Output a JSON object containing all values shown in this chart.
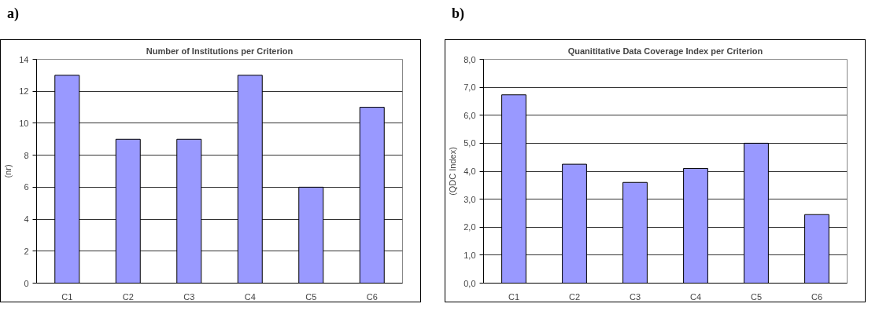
{
  "chart_data": [
    {
      "type": "bar",
      "title": "Number of Institutions per Criterion",
      "ylabel": "(nr)",
      "annotations": [
        "a)"
      ],
      "categories": [
        "C1",
        "C2",
        "C3",
        "C4",
        "C5",
        "C6"
      ],
      "values": [
        13,
        9,
        9,
        13,
        6,
        11
      ],
      "color": "#9999ff",
      "ylim": [
        0,
        14
      ],
      "yticks": [
        0,
        2,
        4,
        6,
        8,
        10,
        12,
        14
      ],
      "grid": "y"
    },
    {
      "type": "bar",
      "title": "Quanititative Data Coverage Index per Criterion",
      "ylabel": "(QDC Index)",
      "annotations": [
        "b)"
      ],
      "categories": [
        "C1",
        "C2",
        "C3",
        "C4",
        "C5",
        "C6"
      ],
      "values": [
        6.73,
        4.25,
        3.6,
        4.1,
        5.0,
        2.45
      ],
      "color": "#9999ff",
      "ylim": [
        0,
        8
      ],
      "yticks": [
        {
          "value": 0,
          "label": "0,0"
        },
        {
          "value": 1,
          "label": "1,0"
        },
        {
          "value": 2,
          "label": "2,0"
        },
        {
          "value": 3,
          "label": "3,0"
        },
        {
          "value": 4,
          "label": "4,0"
        },
        {
          "value": 5,
          "label": "5,0"
        },
        {
          "value": 6,
          "label": "6,0"
        },
        {
          "value": 7,
          "label": "7,0"
        },
        {
          "value": 8,
          "label": "8,0"
        }
      ],
      "grid": "y"
    }
  ]
}
